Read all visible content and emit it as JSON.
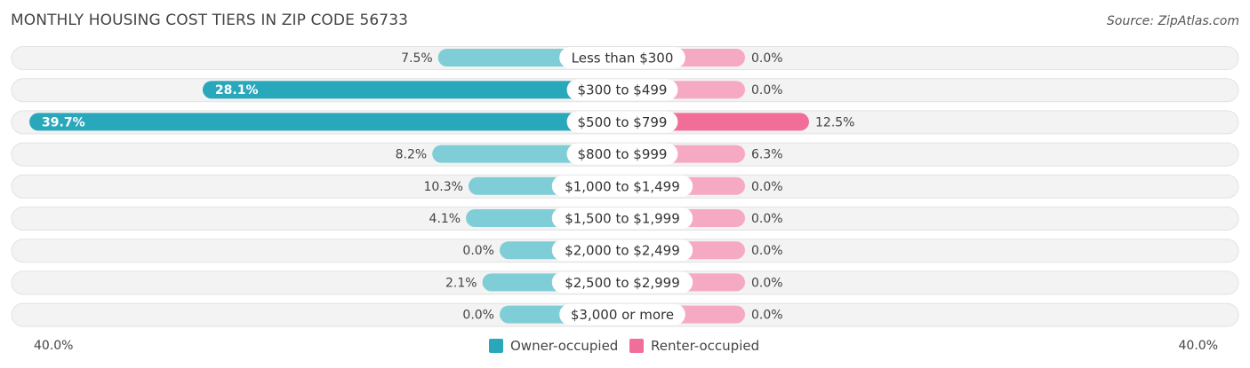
{
  "title": "MONTHLY HOUSING COST TIERS IN ZIP CODE 56733",
  "source": "Source: ZipAtlas.com",
  "colors": {
    "owner": "#2aa8bb",
    "owner_light": "#7fcdd6",
    "renter": "#f06e98",
    "renter_light": "#f6a9c2",
    "row_bg": "#f1f1f1"
  },
  "legend": {
    "owner_label": "Owner-occupied",
    "renter_label": "Renter-occupied"
  },
  "axis": {
    "left_label": "40.0%",
    "right_label": "40.0%"
  },
  "chart_data": {
    "type": "bar",
    "orientation": "diverging-horizontal",
    "categories": [
      "Less than $300",
      "$300 to $499",
      "$500 to $799",
      "$800 to $999",
      "$1,000 to $1,499",
      "$1,500 to $1,999",
      "$2,000 to $2,499",
      "$2,500 to $2,999",
      "$3,000 or more"
    ],
    "series": [
      {
        "name": "Owner-occupied",
        "values": [
          7.5,
          28.1,
          39.7,
          8.2,
          10.3,
          4.1,
          0.0,
          2.1,
          0.0
        ],
        "labels": [
          "7.5%",
          "28.1%",
          "39.7%",
          "8.2%",
          "10.3%",
          "4.1%",
          "0.0%",
          "2.1%",
          "0.0%"
        ]
      },
      {
        "name": "Renter-occupied",
        "values": [
          0.0,
          0.0,
          12.5,
          6.3,
          0.0,
          0.0,
          0.0,
          0.0,
          0.0
        ],
        "labels": [
          "0.0%",
          "0.0%",
          "12.5%",
          "6.3%",
          "0.0%",
          "0.0%",
          "0.0%",
          "0.0%",
          "0.0%"
        ]
      }
    ],
    "xlim": [
      -40,
      40
    ],
    "legend_position": "bottom-center"
  }
}
